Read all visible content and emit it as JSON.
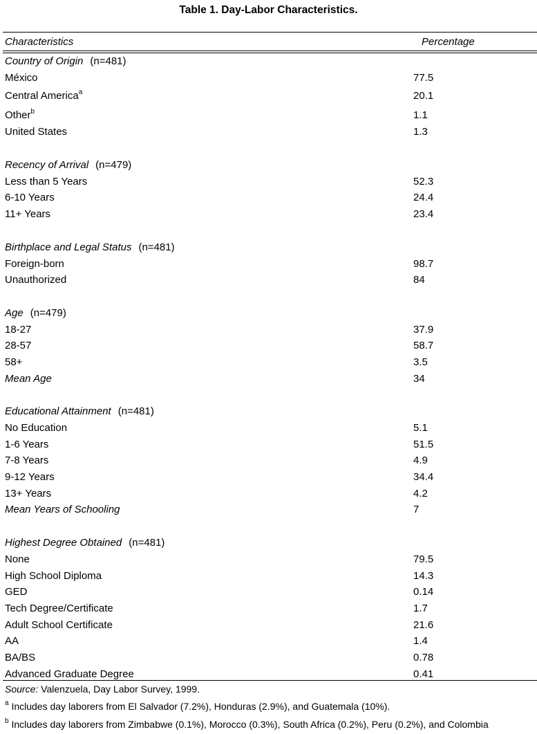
{
  "title": "Table 1. Day-Labor Characteristics.",
  "header": {
    "characteristics": "Characteristics",
    "percentage": "Percentage"
  },
  "sections": [
    {
      "title": "Country of Origin",
      "n": "(n=481)",
      "rows": [
        {
          "label": "México",
          "value": "77.5"
        },
        {
          "label": "Central America",
          "sup": "a",
          "value": "20.1"
        },
        {
          "label": "Other",
          "sup": "b",
          "value": "1.1"
        },
        {
          "label": "United States",
          "value": "1.3"
        }
      ]
    },
    {
      "title": "Recency of Arrival",
      "n": "(n=479)",
      "rows": [
        {
          "label": "Less than 5 Years",
          "value": "52.3"
        },
        {
          "label": "6-10 Years",
          "value": "24.4"
        },
        {
          "label": "11+ Years",
          "value": "23.4"
        }
      ]
    },
    {
      "title": "Birthplace and Legal Status",
      "n": "(n=481)",
      "rows": [
        {
          "label": "Foreign-born",
          "value": "98.7"
        },
        {
          "label": "Unauthorized",
          "value": "84"
        }
      ]
    },
    {
      "title": "Age",
      "n": "(n=479)",
      "rows": [
        {
          "label": "18-27",
          "value": "37.9"
        },
        {
          "label": "28-57",
          "value": "58.7"
        },
        {
          "label": "58+",
          "value": "3.5"
        },
        {
          "label": "Mean Age",
          "italic": true,
          "value": "34"
        }
      ]
    },
    {
      "title": "Educational Attainment",
      "n": "(n=481)",
      "rows": [
        {
          "label": "No Education",
          "value": "5.1"
        },
        {
          "label": "1-6 Years",
          "value": "51.5"
        },
        {
          "label": "7-8 Years",
          "value": "4.9"
        },
        {
          "label": "9-12 Years",
          "value": "34.4"
        },
        {
          "label": "13+ Years",
          "value": "4.2"
        },
        {
          "label": "Mean Years of Schooling",
          "italic": true,
          "value": "7"
        }
      ]
    },
    {
      "title": "Highest Degree Obtained",
      "n": "(n=481)",
      "rows": [
        {
          "label": "None",
          "value": "79.5"
        },
        {
          "label": "High School Diploma",
          "value": "14.3"
        },
        {
          "label": "GED",
          "value": "0.14"
        },
        {
          "label": "Tech Degree/Certificate",
          "value": "1.7"
        },
        {
          "label": "Adult School Certificate",
          "value": "21.6"
        },
        {
          "label": "AA",
          "value": "1.4"
        },
        {
          "label": "BA/BS",
          "value": "0.78"
        },
        {
          "label": "Advanced Graduate Degree",
          "value": "0.41"
        }
      ]
    }
  ],
  "source": {
    "label": "Source:",
    "text": "Valenzuela, Day Labor Survey, 1999."
  },
  "footnotes": [
    {
      "mark": "a",
      "text": "Includes day laborers from El Salvador (7.2%), Honduras (2.9%), and Guatemala (10%)."
    },
    {
      "mark": "b",
      "text": "Includes day laborers from Zimbabwe (0.1%), Morocco (0.3%), South Africa (0.2%), Peru (0.2%), and Colombia"
    }
  ]
}
